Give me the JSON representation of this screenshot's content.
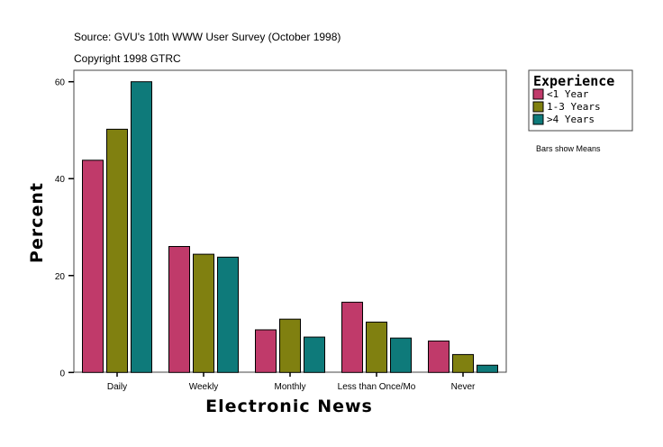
{
  "chart_data": {
    "type": "bar",
    "title": "",
    "annotations": [
      "Source: GVU's 10th WWW User Survey (October 1998)",
      "Copyright 1998 GTRC",
      "Bars show Means"
    ],
    "xlabel": "Electronic News",
    "ylabel": "Percent",
    "ylim": [
      0,
      60
    ],
    "yticks": [
      0,
      20,
      40,
      60
    ],
    "categories": [
      "Daily",
      "Weekly",
      "Monthly",
      "Less than Once/Mo",
      "Never"
    ],
    "legend": {
      "title": "Experience",
      "placement": "right"
    },
    "grid": false,
    "series": [
      {
        "name": "<1 Year",
        "color": "#c03a6a",
        "values": [
          43.8,
          26.0,
          8.8,
          14.5,
          6.5
        ]
      },
      {
        "name": "1-3 Years",
        "color": "#808010",
        "values": [
          50.2,
          24.4,
          11.0,
          10.4,
          3.7
        ]
      },
      {
        "name": ">4 Years",
        "color": "#0e7a7a",
        "values": [
          60.0,
          23.8,
          7.3,
          7.1,
          1.5
        ]
      }
    ]
  }
}
